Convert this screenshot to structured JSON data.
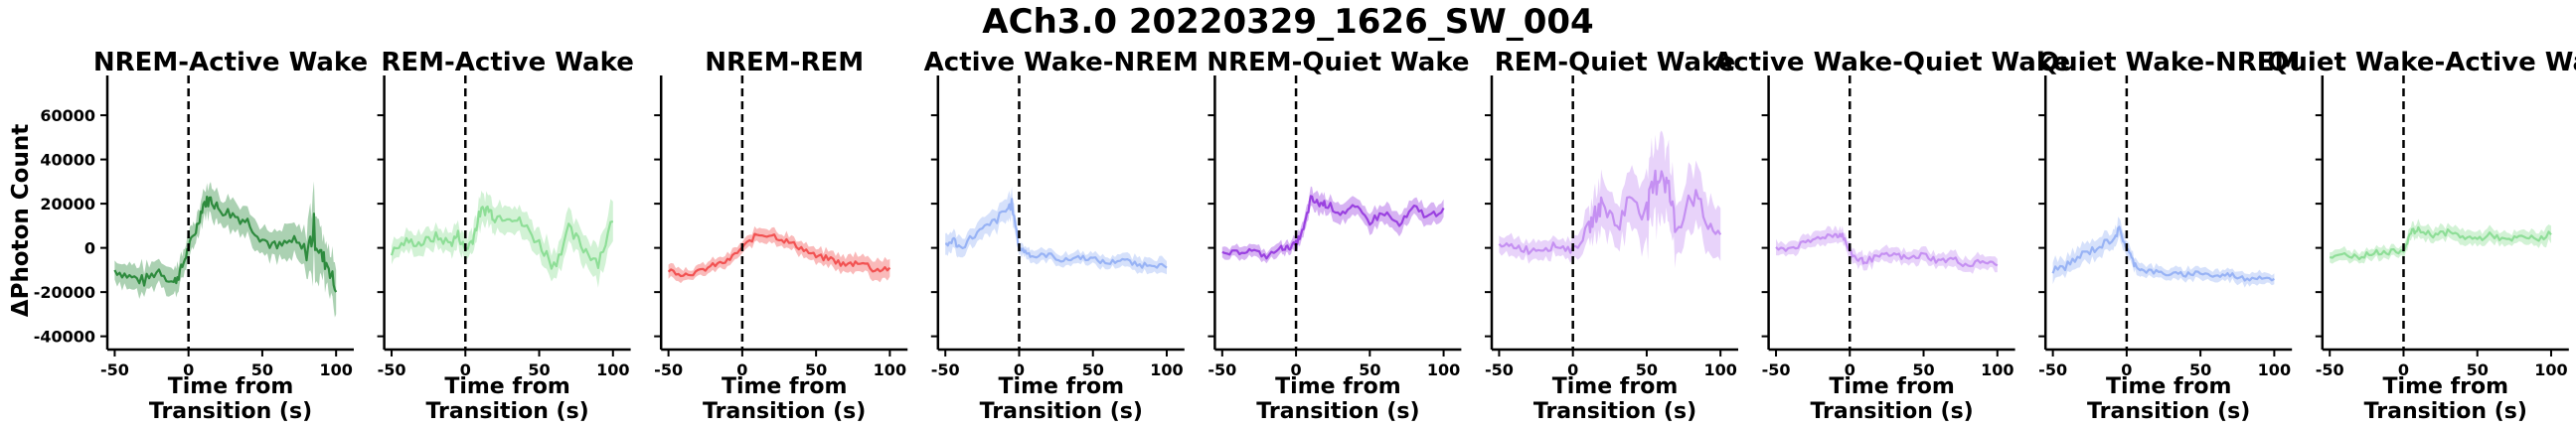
{
  "figure": {
    "suptitle": "ACh3.0 20220329_1626_SW_004",
    "ylabel": "ΔPhoton Count"
  },
  "chart_data": {
    "type": "line",
    "shared": {
      "xlabel_line1": "Time from",
      "xlabel_line2": "Transition (s)",
      "xlim": [
        -55,
        112
      ],
      "ylim": [
        -46000,
        78000
      ],
      "xticks": [
        -50,
        0,
        50,
        100
      ],
      "yticks": [
        -40000,
        -20000,
        0,
        20000,
        40000,
        60000
      ],
      "transition_marker_x": 0
    },
    "panels": [
      {
        "title": "NREM-Active Wake",
        "color": "#2e8b3e",
        "x": [
          -50,
          -40,
          -30,
          -20,
          -10,
          -5,
          0,
          5,
          10,
          15,
          20,
          30,
          40,
          50,
          60,
          70,
          80,
          85,
          90,
          95,
          100
        ],
        "y": [
          -10000,
          -13000,
          -15000,
          -10000,
          -16000,
          -10000,
          0,
          8000,
          20000,
          22000,
          18000,
          15000,
          12000,
          4000,
          0,
          3000,
          -2000,
          8000,
          -4000,
          -8000,
          -20000
        ],
        "spread": [
          5000,
          5000,
          6000,
          5000,
          6000,
          6000,
          5000,
          5000,
          6000,
          6000,
          6000,
          6000,
          6000,
          6000,
          6000,
          7000,
          9000,
          18000,
          10000,
          9000,
          10000
        ]
      },
      {
        "title": "REM-Active Wake",
        "color": "#8ede97",
        "x": [
          -50,
          -40,
          -30,
          -20,
          -10,
          -5,
          0,
          5,
          10,
          15,
          20,
          30,
          40,
          50,
          60,
          70,
          80,
          90,
          100
        ],
        "y": [
          -2000,
          3000,
          2000,
          5000,
          2000,
          6000,
          -1000,
          4000,
          16000,
          18000,
          14000,
          15000,
          10000,
          2000,
          -8000,
          8000,
          0,
          -6000,
          12000
        ],
        "spread": [
          4000,
          4000,
          5000,
          5000,
          5000,
          5000,
          5000,
          5000,
          6000,
          6000,
          6000,
          6000,
          6000,
          6000,
          7000,
          7000,
          7000,
          7000,
          9000
        ]
      },
      {
        "title": "NREM-REM",
        "color": "#f25252",
        "x": [
          -50,
          -40,
          -30,
          -20,
          -10,
          0,
          10,
          20,
          30,
          40,
          50,
          60,
          70,
          80,
          90,
          100
        ],
        "y": [
          -10000,
          -12000,
          -11000,
          -8000,
          -6000,
          0,
          6000,
          6000,
          3000,
          0,
          -4000,
          -5000,
          -8000,
          -6000,
          -10000,
          -9000
        ],
        "spread": [
          2500,
          2500,
          2500,
          2500,
          2500,
          2500,
          3000,
          3000,
          3000,
          3000,
          3000,
          3000,
          3500,
          3500,
          4000,
          4000
        ]
      },
      {
        "title": "Active Wake-NREM",
        "color": "#98b3f5",
        "x": [
          -50,
          -45,
          -40,
          -30,
          -20,
          -10,
          -5,
          0,
          5,
          10,
          20,
          30,
          40,
          50,
          60,
          70,
          80,
          90,
          100
        ],
        "y": [
          0,
          4000,
          0,
          6000,
          10000,
          16000,
          20000,
          0,
          -2000,
          -4000,
          -3000,
          -6000,
          -4000,
          -5000,
          -7000,
          -5000,
          -8000,
          -7000,
          -9000
        ],
        "spread": [
          4000,
          4000,
          4000,
          4000,
          5000,
          5000,
          5000,
          3000,
          2500,
          2500,
          2500,
          2500,
          2500,
          2500,
          2500,
          2500,
          3000,
          3000,
          3000
        ]
      },
      {
        "title": "NREM-Quiet Wake",
        "color": "#9a41e0",
        "x": [
          -50,
          -40,
          -30,
          -20,
          -10,
          -5,
          0,
          5,
          10,
          15,
          20,
          30,
          40,
          50,
          60,
          70,
          80,
          90,
          100
        ],
        "y": [
          -3000,
          -2000,
          -1000,
          -4000,
          0,
          0,
          2000,
          8000,
          22000,
          20000,
          20000,
          16000,
          18000,
          12000,
          16000,
          10000,
          18000,
          14000,
          18000
        ],
        "spread": [
          2500,
          2500,
          2500,
          2500,
          2500,
          2500,
          3000,
          3500,
          4000,
          4000,
          4000,
          4000,
          4000,
          4000,
          4000,
          4000,
          4000,
          4000,
          4000
        ]
      },
      {
        "title": "REM-Quiet Wake",
        "color": "#c590f2",
        "x": [
          -50,
          -40,
          -30,
          -20,
          -10,
          0,
          10,
          15,
          20,
          30,
          40,
          50,
          55,
          60,
          65,
          70,
          80,
          90,
          100
        ],
        "y": [
          0,
          1000,
          -1000,
          0,
          1000,
          -1000,
          8000,
          15000,
          20000,
          10000,
          24000,
          16000,
          28000,
          36000,
          26000,
          8000,
          26000,
          12000,
          6000
        ],
        "spread": [
          4000,
          4000,
          4000,
          4000,
          4000,
          4000,
          7000,
          9000,
          10000,
          10000,
          12000,
          14000,
          16000,
          18000,
          16000,
          12000,
          14000,
          12000,
          12000
        ]
      },
      {
        "title": "Active Wake-Quiet Wake",
        "color": "#c590f2",
        "x": [
          -50,
          -40,
          -30,
          -20,
          -10,
          -5,
          0,
          5,
          10,
          20,
          30,
          40,
          50,
          60,
          70,
          80,
          90,
          100
        ],
        "y": [
          -1000,
          0,
          2000,
          5000,
          6000,
          6000,
          -2000,
          -5000,
          -6000,
          -4000,
          -3000,
          -5000,
          -3000,
          -6000,
          -5000,
          -8000,
          -6000,
          -8000
        ],
        "spread": [
          3000,
          3000,
          3000,
          3000,
          3000,
          3000,
          3000,
          3000,
          3000,
          3000,
          3000,
          3000,
          3000,
          3000,
          3000,
          3000,
          3000,
          3000
        ]
      },
      {
        "title": "Quiet Wake-NREM",
        "color": "#98b3f5",
        "x": [
          -50,
          -40,
          -30,
          -20,
          -10,
          -5,
          0,
          5,
          10,
          20,
          30,
          40,
          50,
          60,
          70,
          80,
          90,
          100
        ],
        "y": [
          -10000,
          -8000,
          -3000,
          0,
          4000,
          8000,
          0,
          -7000,
          -10000,
          -11000,
          -12000,
          -12000,
          -11000,
          -13000,
          -12000,
          -14000,
          -13000,
          -14000
        ],
        "spread": [
          4000,
          4000,
          4000,
          4000,
          4000,
          4000,
          3000,
          3000,
          2500,
          2500,
          2500,
          2500,
          2500,
          2500,
          2500,
          2500,
          2500,
          2500
        ]
      },
      {
        "title": "Quiet Wake-Active Wake",
        "color": "#8ede97",
        "x": [
          -50,
          -40,
          -30,
          -20,
          -10,
          0,
          5,
          10,
          20,
          30,
          40,
          50,
          60,
          70,
          80,
          90,
          100
        ],
        "y": [
          -5000,
          -3000,
          -4000,
          -2000,
          -2000,
          -1000,
          7000,
          8000,
          6000,
          7000,
          5000,
          4000,
          6000,
          3000,
          5000,
          4000,
          6000
        ],
        "spread": [
          2500,
          2500,
          2500,
          2500,
          2500,
          2500,
          3000,
          3000,
          3000,
          3000,
          3000,
          3000,
          3000,
          3000,
          3000,
          3000,
          4000
        ]
      }
    ]
  }
}
